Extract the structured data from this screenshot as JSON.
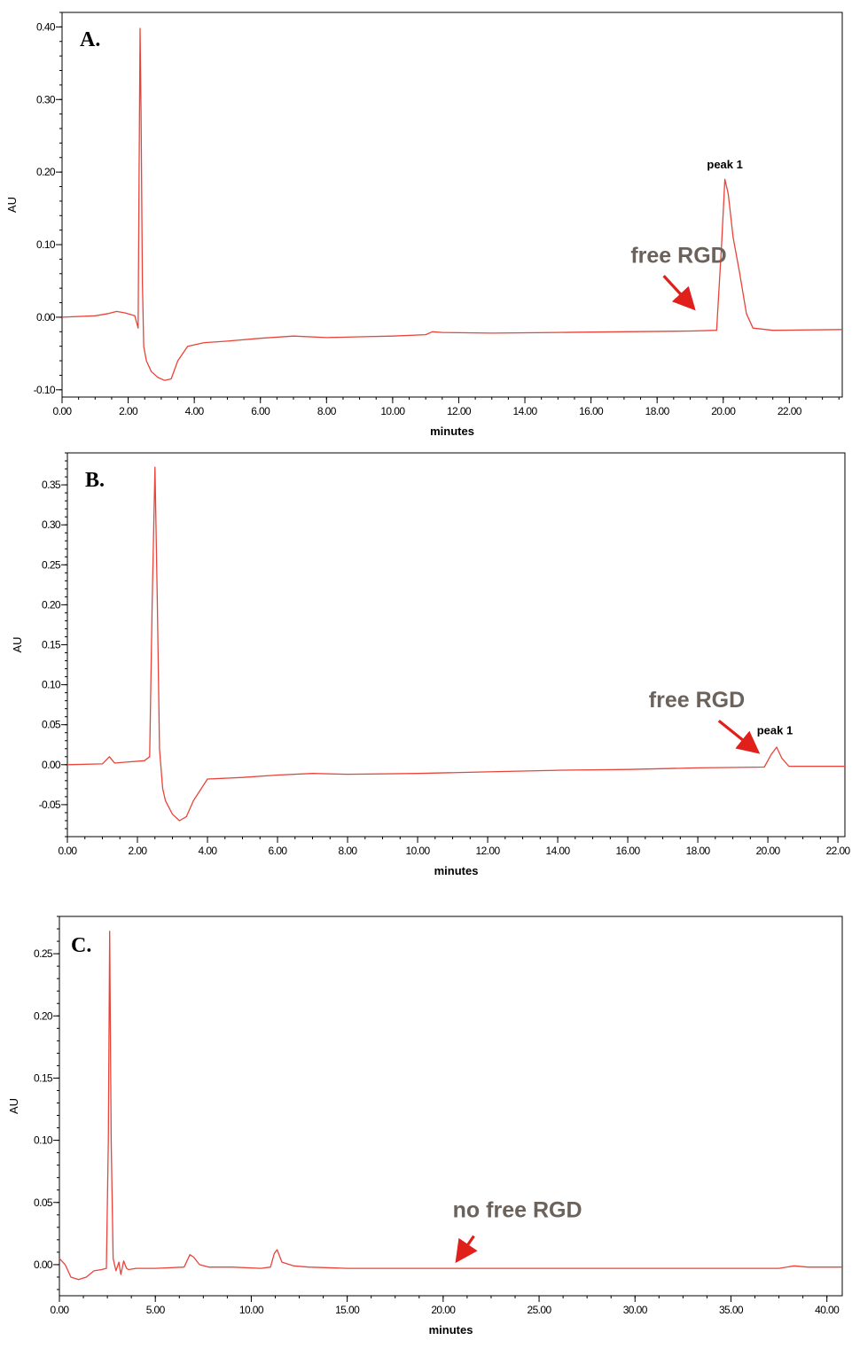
{
  "colors": {
    "trace": "#e8443a",
    "arrow": "#e0201a",
    "annotation": "#6b625c",
    "frame": "#000000"
  },
  "chart_data": [
    {
      "type": "line",
      "panel_label": "A.",
      "xlabel": "minutes",
      "ylabel": "AU",
      "xlim": [
        0,
        23.6
      ],
      "ylim": [
        -0.11,
        0.42
      ],
      "xticks": [
        0,
        2,
        4,
        6,
        8,
        10,
        12,
        14,
        16,
        18,
        20,
        22
      ],
      "xtick_labels": [
        "0.00",
        "2.00",
        "4.00",
        "6.00",
        "8.00",
        "10.00",
        "12.00",
        "14.00",
        "16.00",
        "18.00",
        "20.00",
        "22.00"
      ],
      "yticks": [
        -0.1,
        0,
        0.1,
        0.2,
        0.3,
        0.4
      ],
      "ytick_labels": [
        "-0.10",
        "0.00",
        "0.10",
        "0.20",
        "0.30",
        "0.40"
      ],
      "annotations": [
        {
          "text": "free  RGD",
          "x": 17.2,
          "y": 0.075,
          "style": "annot"
        },
        {
          "text": "peak 1",
          "x": 20.05,
          "y": 0.205,
          "style": "peak"
        }
      ],
      "arrows": [
        {
          "from": [
            18.2,
            0.057
          ],
          "to": [
            19.05,
            0.015
          ]
        }
      ],
      "series": [
        {
          "x": [
            0,
            1.0,
            1.4,
            1.65,
            1.9,
            2.2,
            2.3,
            2.33,
            2.36,
            2.39,
            2.43,
            2.47,
            2.55,
            2.7,
            2.9,
            3.1,
            3.3,
            3.5,
            3.8,
            4.3,
            5.0,
            6.0,
            7.0,
            8.0,
            9.0,
            10.0,
            11.0,
            11.2,
            11.5,
            13.0,
            15.0,
            17.0,
            19.0,
            19.8,
            19.95,
            20.05,
            20.15,
            20.3,
            20.5,
            20.7,
            20.9,
            21.5,
            23.6
          ],
          "y": [
            0,
            0.002,
            0.005,
            0.008,
            0.006,
            0.002,
            -0.015,
            0.2,
            0.398,
            0.28,
            0.05,
            -0.04,
            -0.06,
            -0.075,
            -0.083,
            -0.087,
            -0.085,
            -0.06,
            -0.04,
            -0.035,
            -0.033,
            -0.029,
            -0.026,
            -0.028,
            -0.027,
            -0.026,
            -0.024,
            -0.02,
            -0.021,
            -0.022,
            -0.021,
            -0.02,
            -0.019,
            -0.018,
            0.1,
            0.19,
            0.17,
            0.11,
            0.06,
            0.005,
            -0.015,
            -0.018,
            -0.017
          ]
        }
      ]
    },
    {
      "type": "line",
      "panel_label": "B.",
      "xlabel": "minutes",
      "ylabel": "AU",
      "xlim": [
        0,
        22.2
      ],
      "ylim": [
        -0.09,
        0.39
      ],
      "xticks": [
        0,
        2,
        4,
        6,
        8,
        10,
        12,
        14,
        16,
        18,
        20,
        22
      ],
      "xtick_labels": [
        "0.00",
        "2.00",
        "4.00",
        "6.00",
        "8.00",
        "10.00",
        "12.00",
        "14.00",
        "16.00",
        "18.00",
        "20.00",
        "22.00"
      ],
      "yticks": [
        -0.05,
        0,
        0.05,
        0.1,
        0.15,
        0.2,
        0.25,
        0.3,
        0.35
      ],
      "ytick_labels": [
        "-0.05",
        "0.00",
        "0.05",
        "0.10",
        "0.15",
        "0.20",
        "0.25",
        "0.30",
        "0.35"
      ],
      "annotations": [
        {
          "text": "free  RGD",
          "x": 16.6,
          "y": 0.072,
          "style": "annot"
        },
        {
          "text": "peak 1",
          "x": 20.2,
          "y": 0.038,
          "style": "peak"
        }
      ],
      "arrows": [
        {
          "from": [
            18.6,
            0.055
          ],
          "to": [
            19.65,
            0.018
          ]
        }
      ],
      "series": [
        {
          "x": [
            0,
            1.0,
            1.2,
            1.35,
            1.6,
            2.2,
            2.35,
            2.42,
            2.5,
            2.57,
            2.63,
            2.72,
            2.8,
            3.0,
            3.2,
            3.4,
            3.6,
            4.0,
            5.0,
            6.0,
            7.0,
            8.0,
            10.0,
            12.0,
            14.0,
            16.0,
            18.0,
            19.9,
            20.1,
            20.25,
            20.4,
            20.6,
            22.2
          ],
          "y": [
            0,
            0.001,
            0.01,
            0.002,
            0.003,
            0.005,
            0.01,
            0.2,
            0.372,
            0.2,
            0.02,
            -0.03,
            -0.045,
            -0.062,
            -0.07,
            -0.065,
            -0.045,
            -0.018,
            -0.016,
            -0.013,
            -0.011,
            -0.012,
            -0.011,
            -0.009,
            -0.007,
            -0.006,
            -0.004,
            -0.003,
            0.013,
            0.022,
            0.008,
            -0.002,
            -0.002
          ]
        }
      ]
    },
    {
      "type": "line",
      "panel_label": "C.",
      "xlabel": "minutes",
      "ylabel": "AU",
      "xlim": [
        0,
        40.8
      ],
      "ylim": [
        -0.025,
        0.28
      ],
      "xticks": [
        0,
        5,
        10,
        15,
        20,
        25,
        30,
        35,
        40
      ],
      "xtick_labels": [
        "0.00",
        "5.00",
        "10.00",
        "15.00",
        "20.00",
        "25.00",
        "30.00",
        "35.00",
        "40.00"
      ],
      "yticks": [
        0,
        0.05,
        0.1,
        0.15,
        0.2,
        0.25
      ],
      "ytick_labels": [
        "0.00",
        "0.05",
        "0.10",
        "0.15",
        "0.20",
        "0.25"
      ],
      "annotations": [
        {
          "text": "no free RGD",
          "x": 20.5,
          "y": 0.038,
          "style": "annot"
        }
      ],
      "arrows": [
        {
          "from": [
            21.6,
            0.023
          ],
          "to": [
            20.8,
            0.005
          ]
        }
      ],
      "series": [
        {
          "x": [
            0,
            0.3,
            0.6,
            1.0,
            1.4,
            1.8,
            2.2,
            2.45,
            2.55,
            2.62,
            2.7,
            2.8,
            2.95,
            3.1,
            3.2,
            3.35,
            3.5,
            3.6,
            4.0,
            5.0,
            6.5,
            6.8,
            7.0,
            7.3,
            7.8,
            9.0,
            10.5,
            11.0,
            11.2,
            11.35,
            11.6,
            12.2,
            13.0,
            15.0,
            20.0,
            25.0,
            30.0,
            35.0,
            37.5,
            38.3,
            39.0,
            40.8
          ],
          "y": [
            0.005,
            0.0,
            -0.01,
            -0.012,
            -0.01,
            -0.005,
            -0.004,
            -0.003,
            0.1,
            0.268,
            0.1,
            0.005,
            -0.005,
            0.002,
            -0.008,
            0.003,
            -0.003,
            -0.004,
            -0.003,
            -0.003,
            -0.002,
            0.008,
            0.006,
            0.0,
            -0.002,
            -0.002,
            -0.003,
            -0.002,
            0.009,
            0.012,
            0.002,
            -0.001,
            -0.002,
            -0.003,
            -0.003,
            -0.003,
            -0.003,
            -0.003,
            -0.003,
            -0.001,
            -0.002,
            -0.002
          ]
        }
      ]
    }
  ]
}
